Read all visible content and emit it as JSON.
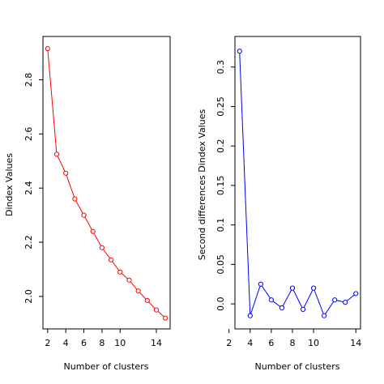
{
  "chart_data": [
    {
      "type": "line",
      "title": "",
      "xlabel": "Number of clusters",
      "ylabel": "Dindex Values",
      "xlim": [
        2,
        15
      ],
      "ylim": [
        1.92,
        2.92
      ],
      "xticks": [
        2,
        4,
        6,
        8,
        10,
        14
      ],
      "yticks": [
        2.0,
        2.2,
        2.4,
        2.6,
        2.8
      ],
      "grid": false,
      "color": "#ff0000",
      "x": [
        2,
        3,
        4,
        5,
        6,
        7,
        8,
        9,
        10,
        11,
        12,
        13,
        14,
        15
      ],
      "y": [
        2.915,
        2.525,
        2.455,
        2.36,
        2.3,
        2.24,
        2.18,
        2.135,
        2.09,
        2.06,
        2.02,
        1.985,
        1.95,
        1.92
      ]
    },
    {
      "type": "line",
      "title": "",
      "xlabel": "Number of clusters",
      "ylabel": "Second differences Dindex Values",
      "xlim": [
        3,
        14
      ],
      "ylim": [
        -0.018,
        0.325
      ],
      "xticks": [
        2,
        4,
        6,
        8,
        10,
        14
      ],
      "yticks": [
        0.0,
        0.05,
        0.1,
        0.15,
        0.2,
        0.25,
        0.3
      ],
      "grid": false,
      "color": "#0000ff",
      "x": [
        3,
        4,
        5,
        6,
        7,
        8,
        9,
        10,
        11,
        12,
        13,
        14
      ],
      "y": [
        0.32,
        -0.015,
        0.025,
        0.005,
        -0.005,
        0.02,
        -0.007,
        0.02,
        -0.015,
        0.005,
        0.002,
        0.013
      ]
    }
  ]
}
